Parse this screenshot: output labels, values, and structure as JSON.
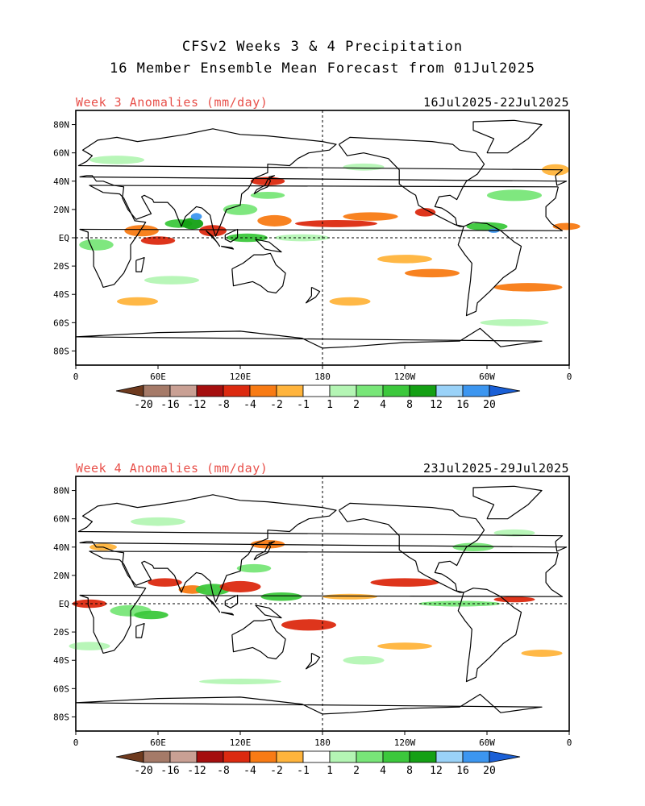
{
  "title_line1": "CFSv2 Weeks 3 & 4 Precipitation",
  "title_line2": "16 Member Ensemble Mean Forecast from 01Jul2025",
  "panels": [
    {
      "anomaly_label": "Week 3 Anomalies (mm/day)",
      "date_range": "16Jul2025-22Jul2025"
    },
    {
      "anomaly_label": "Week 4 Anomalies (mm/day)",
      "date_range": "23Jul2025-29Jul2025"
    }
  ],
  "lat_labels": [
    "80N",
    "60N",
    "40N",
    "20N",
    "EQ",
    "20S",
    "40S",
    "60S",
    "80S"
  ],
  "lon_labels": [
    "0",
    "60E",
    "120E",
    "180",
    "120W",
    "60W",
    "0"
  ],
  "colorbar": {
    "labels": [
      "-20",
      "-16",
      "-12",
      "-8",
      "-4",
      "-2",
      "-1",
      "1",
      "2",
      "4",
      "8",
      "12",
      "16",
      "20"
    ],
    "colors": [
      "#6e3a1e",
      "#a57a68",
      "#c9a094",
      "#a50f0f",
      "#dc2a10",
      "#f87b14",
      "#ffb43c",
      "#ffffff",
      "#b4f5b4",
      "#78e678",
      "#3cc83c",
      "#14a014",
      "#9ad2f8",
      "#3c96f0",
      "#1a5fd6"
    ]
  }
}
